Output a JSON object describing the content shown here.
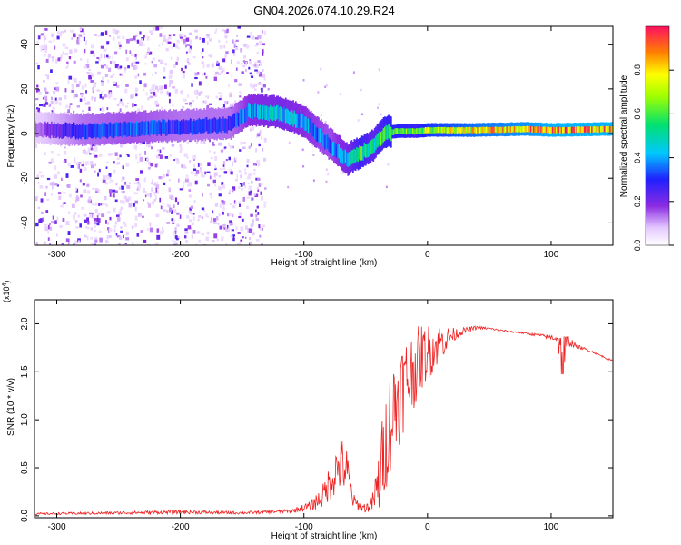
{
  "title": "GN04.2026.074.10.29.R24",
  "colors": {
    "snr_line": "#ee2222",
    "spec_ridge_low": "#7a1fe0",
    "spec_ridge_high": "#ff2020"
  },
  "colorbar": {
    "label": "Normalized spectral amplitude",
    "ticks": [
      {
        "v": 0.0,
        "label": "0.0"
      },
      {
        "v": 0.2,
        "label": "0.2"
      },
      {
        "v": 0.4,
        "label": "0.4"
      },
      {
        "v": 0.6,
        "label": "0.6"
      },
      {
        "v": 0.8,
        "label": "0.8"
      }
    ]
  },
  "chart_data": [
    {
      "type": "heatmap",
      "title": "GN04.2026.074.10.29.R24",
      "xlabel": "Height of straight line (km)",
      "ylabel": "Frequency (Hz)",
      "xlim": [
        -318,
        150
      ],
      "ylim": [
        -50,
        48
      ],
      "xticks": [
        {
          "v": -300,
          "label": "-300"
        },
        {
          "v": -200,
          "label": "-200"
        },
        {
          "v": -100,
          "label": "-100"
        },
        {
          "v": 0,
          "label": "0"
        },
        {
          "v": 100,
          "label": "100"
        }
      ],
      "yticks": [
        {
          "v": -40,
          "label": "-40"
        },
        {
          "v": -20,
          "label": "-20"
        },
        {
          "v": 0,
          "label": "0"
        },
        {
          "v": 20,
          "label": "20"
        },
        {
          "v": 40,
          "label": "40"
        }
      ],
      "ridge": {
        "description": "dominant frequency vs height",
        "x": [
          -318,
          -280,
          -240,
          -200,
          -160,
          -145,
          -120,
          -100,
          -80,
          -65,
          -55,
          -45,
          -35,
          -25,
          -10,
          0,
          40,
          80,
          100,
          150
        ],
        "freq": [
          2,
          1,
          2,
          3,
          4,
          10,
          9,
          5,
          -5,
          -12,
          -9,
          -6,
          0,
          1,
          1,
          1.5,
          1.5,
          2,
          1.5,
          2
        ],
        "amplitude": [
          0.15,
          0.3,
          0.35,
          0.3,
          0.3,
          0.4,
          0.45,
          0.4,
          0.35,
          0.45,
          0.6,
          0.5,
          0.6,
          0.65,
          0.6,
          0.7,
          0.8,
          0.85,
          0.9,
          0.9
        ]
      },
      "noise_band_x": [
        -318,
        -140
      ]
    },
    {
      "type": "line",
      "xlabel": "Height of straight line (km)",
      "ylabel": "SNR (10 * v/v)",
      "y_multiplier": "(x10^4)",
      "xlim": [
        -318,
        150
      ],
      "ylim": [
        -0.02,
        2.25
      ],
      "xticks": [
        {
          "v": -300,
          "label": "-300"
        },
        {
          "v": -200,
          "label": "-200"
        },
        {
          "v": -100,
          "label": "-100"
        },
        {
          "v": 0,
          "label": "0"
        },
        {
          "v": 100,
          "label": "100"
        }
      ],
      "yticks": [
        {
          "v": 0.0,
          "label": "0.0"
        },
        {
          "v": 0.5,
          "label": "0.5"
        },
        {
          "v": 1.0,
          "label": "1.0"
        },
        {
          "v": 1.5,
          "label": "1.5"
        },
        {
          "v": 2.0,
          "label": "2.0"
        }
      ],
      "series": [
        {
          "name": "SNR",
          "x": [
            -318,
            -250,
            -200,
            -150,
            -110,
            -95,
            -85,
            -75,
            -70,
            -65,
            -60,
            -55,
            -50,
            -45,
            -40,
            -35,
            -30,
            -25,
            -20,
            -15,
            -10,
            -5,
            0,
            5,
            10,
            20,
            30,
            40,
            50,
            60,
            80,
            95,
            105,
            110,
            115,
            120,
            135,
            150
          ],
          "y": [
            0.02,
            0.03,
            0.04,
            0.03,
            0.05,
            0.1,
            0.2,
            0.45,
            0.55,
            0.45,
            0.15,
            0.1,
            0.08,
            0.12,
            0.3,
            0.7,
            1.0,
            1.2,
            1.35,
            1.45,
            1.55,
            1.65,
            1.7,
            1.75,
            1.8,
            1.88,
            1.93,
            1.96,
            1.95,
            1.93,
            1.9,
            1.87,
            1.85,
            1.6,
            1.82,
            1.77,
            1.7,
            1.61
          ],
          "noise_amp": [
            0.01,
            0.015,
            0.02,
            0.015,
            0.02,
            0.05,
            0.12,
            0.25,
            0.3,
            0.25,
            0.08,
            0.05,
            0.05,
            0.08,
            0.35,
            0.5,
            0.55,
            0.55,
            0.5,
            0.45,
            0.4,
            0.35,
            0.3,
            0.25,
            0.2,
            0.08,
            0.03,
            0.02,
            0.01,
            0.01,
            0.01,
            0.02,
            0.04,
            0.35,
            0.06,
            0.02,
            0.01,
            0.01
          ]
        }
      ]
    }
  ]
}
